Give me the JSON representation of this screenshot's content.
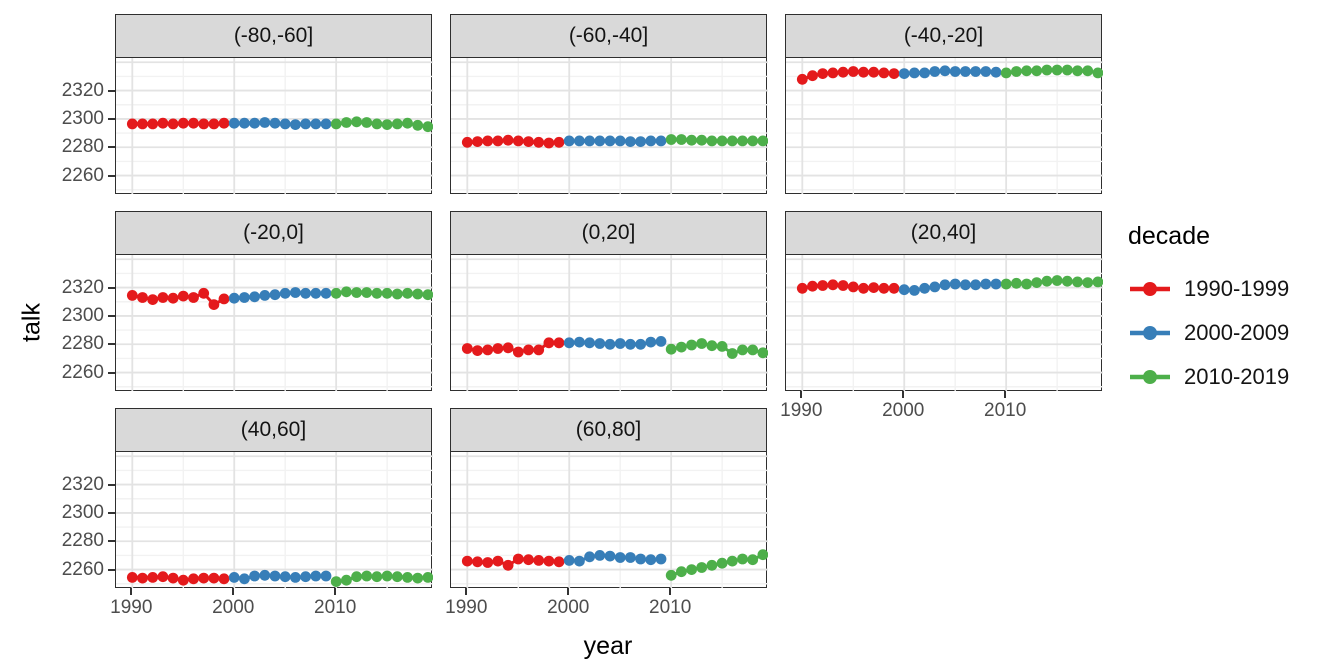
{
  "figure": {
    "x_label": "year",
    "y_label": "talk",
    "y_tick_labels": [
      "2320",
      "2300",
      "2280",
      "2260"
    ],
    "x_tick_labels": [
      "1990",
      "2000",
      "2010"
    ],
    "colors": {
      "panel_bg": "#FFFFFF",
      "strip_bg": "#D9D9D9",
      "border": "#2F2F2F",
      "grid_major": "#E3E3E3",
      "grid_minor": "#F2F2F2",
      "tick_text": "#4D4D4D"
    }
  },
  "legend": {
    "title": "decade",
    "entries": [
      {
        "label": "1990-1999",
        "color": "#E41A1C"
      },
      {
        "label": "2000-2009",
        "color": "#377EB8"
      },
      {
        "label": "2010-2019",
        "color": "#4DAF4A"
      }
    ]
  },
  "chart_data": {
    "type": "line",
    "title": "",
    "xlabel": "year",
    "ylabel": "talk",
    "xlim": [
      1988.4,
      2019.5
    ],
    "ylim": [
      2247,
      2343
    ],
    "x_major_ticks": [
      1990,
      2000,
      2010
    ],
    "x_major_grid": [
      1990,
      2000,
      2010,
      2020
    ],
    "x_minor_grid": [
      1995,
      2005,
      2015
    ],
    "y_major_ticks": [
      2320,
      2300,
      2280,
      2260
    ],
    "y_major_grid": [
      2260,
      2280,
      2300,
      2320,
      2340
    ],
    "y_minor_grid": [
      2250,
      2270,
      2290,
      2310,
      2330
    ],
    "grid": true,
    "legend_position": "right",
    "facet_variable": "latitude band",
    "series_names": [
      "1990-1999",
      "2000-2009",
      "2010-2019"
    ],
    "series_colors": [
      "#E41A1C",
      "#377EB8",
      "#4DAF4A"
    ],
    "series_start_years": [
      1990,
      2000,
      2010
    ],
    "facets": [
      {
        "label": "(-80,-60]",
        "series": [
          {
            "name": "1990-1999",
            "x_start": 1990,
            "values": [
              2296.5,
              2296.5,
              2296.5,
              2297,
              2296.5,
              2297,
              2297,
              2296.5,
              2296.5,
              2297
            ]
          },
          {
            "name": "2000-2009",
            "x_start": 2000,
            "values": [
              2297,
              2297,
              2297,
              2297.5,
              2297,
              2296.5,
              2296,
              2296.5,
              2296.5,
              2296.5
            ]
          },
          {
            "name": "2010-2019",
            "x_start": 2010,
            "values": [
              2296.5,
              2297.5,
              2298,
              2297.5,
              2296.5,
              2296,
              2296.5,
              2297,
              2295.5,
              2294.5
            ]
          }
        ]
      },
      {
        "label": "(-60,-40]",
        "series": [
          {
            "name": "1990-1999",
            "x_start": 1990,
            "values": [
              2283.5,
              2284,
              2284.5,
              2284.5,
              2285,
              2284.5,
              2284,
              2283.5,
              2283,
              2283.5
            ]
          },
          {
            "name": "2000-2009",
            "x_start": 2000,
            "values": [
              2284.5,
              2284.5,
              2284.5,
              2284.5,
              2284.5,
              2284.5,
              2284,
              2284,
              2284.5,
              2284.5
            ]
          },
          {
            "name": "2010-2019",
            "x_start": 2010,
            "values": [
              2285.5,
              2285.5,
              2285,
              2285,
              2284.5,
              2284.5,
              2284.5,
              2284.5,
              2284.5,
              2284.5
            ]
          }
        ]
      },
      {
        "label": "(-40,-20]",
        "series": [
          {
            "name": "1990-1999",
            "x_start": 1990,
            "values": [
              2328,
              2330.5,
              2332,
              2332.5,
              2333,
              2333.5,
              2333,
              2333,
              2332.5,
              2332
            ]
          },
          {
            "name": "2000-2009",
            "x_start": 2000,
            "values": [
              2332,
              2332.5,
              2332.5,
              2333.5,
              2334,
              2333.5,
              2333.5,
              2333.5,
              2333.5,
              2333
            ]
          },
          {
            "name": "2010-2019",
            "x_start": 2010,
            "values": [
              2332.5,
              2333.5,
              2334,
              2334,
              2334.5,
              2334.5,
              2334.5,
              2334,
              2334,
              2332.5
            ]
          }
        ]
      },
      {
        "label": "(-20,0]",
        "series": [
          {
            "name": "1990-1999",
            "x_start": 1990,
            "values": [
              2314.5,
              2313,
              2311.5,
              2313,
              2312.5,
              2314,
              2313,
              2316,
              2308,
              2312
            ]
          },
          {
            "name": "2000-2009",
            "x_start": 2000,
            "values": [
              2312.5,
              2313,
              2313.5,
              2314.5,
              2315,
              2316,
              2316.5,
              2316,
              2316,
              2316
            ]
          },
          {
            "name": "2010-2019",
            "x_start": 2010,
            "values": [
              2316,
              2317,
              2316.5,
              2316.5,
              2316,
              2316,
              2315.5,
              2316,
              2315.5,
              2315
            ]
          }
        ]
      },
      {
        "label": "(0,20]",
        "series": [
          {
            "name": "1990-1999",
            "x_start": 1990,
            "values": [
              2277,
              2275.5,
              2276,
              2277,
              2277.5,
              2274.5,
              2276,
              2276,
              2281,
              2281
            ]
          },
          {
            "name": "2000-2009",
            "x_start": 2000,
            "values": [
              2281,
              2281.5,
              2281,
              2280.5,
              2280,
              2280.5,
              2280,
              2280,
              2281.5,
              2282
            ]
          },
          {
            "name": "2010-2019",
            "x_start": 2010,
            "values": [
              2276.5,
              2278,
              2279.5,
              2280.5,
              2279,
              2278.5,
              2273.5,
              2276,
              2276,
              2274
            ]
          }
        ]
      },
      {
        "label": "(20,40]",
        "series": [
          {
            "name": "1990-1999",
            "x_start": 1990,
            "values": [
              2319.5,
              2321,
              2321.5,
              2322,
              2321.5,
              2320.5,
              2319.5,
              2320,
              2319.5,
              2319.5
            ]
          },
          {
            "name": "2000-2009",
            "x_start": 2000,
            "values": [
              2318.5,
              2318,
              2319.5,
              2320.5,
              2322,
              2322.5,
              2322,
              2322,
              2322.5,
              2322.5
            ]
          },
          {
            "name": "2010-2019",
            "x_start": 2010,
            "values": [
              2322.5,
              2323,
              2322.5,
              2323.5,
              2324.5,
              2325,
              2324.5,
              2324,
              2323.5,
              2324
            ]
          }
        ]
      },
      {
        "label": "(40,60]",
        "series": [
          {
            "name": "1990-1999",
            "x_start": 1990,
            "values": [
              2254.5,
              2254,
              2254.5,
              2255,
              2254,
              2252.5,
              2253.5,
              2254,
              2254,
              2253.5
            ]
          },
          {
            "name": "2000-2009",
            "x_start": 2000,
            "values": [
              2254.5,
              2253.5,
              2255.5,
              2256,
              2255.5,
              2255,
              2254.5,
              2255,
              2255.5,
              2255.5
            ]
          },
          {
            "name": "2010-2019",
            "x_start": 2010,
            "values": [
              2251.5,
              2252.5,
              2255,
              2255.5,
              2255,
              2255.5,
              2255,
              2254.5,
              2254,
              2254.5
            ]
          }
        ]
      },
      {
        "label": "(60,80]",
        "series": [
          {
            "name": "1990-1999",
            "x_start": 1990,
            "values": [
              2266,
              2265.5,
              2265,
              2266,
              2263,
              2267.5,
              2267,
              2266.5,
              2266,
              2265.5
            ]
          },
          {
            "name": "2000-2009",
            "x_start": 2000,
            "values": [
              2266.5,
              2266,
              2269,
              2270,
              2269.5,
              2268.5,
              2268.5,
              2267.5,
              2267,
              2267.5
            ]
          },
          {
            "name": "2010-2019",
            "x_start": 2010,
            "values": [
              2256,
              2258.5,
              2260,
              2261.5,
              2263,
              2264.5,
              2266,
              2267.5,
              2267,
              2270.5
            ]
          }
        ]
      }
    ]
  }
}
